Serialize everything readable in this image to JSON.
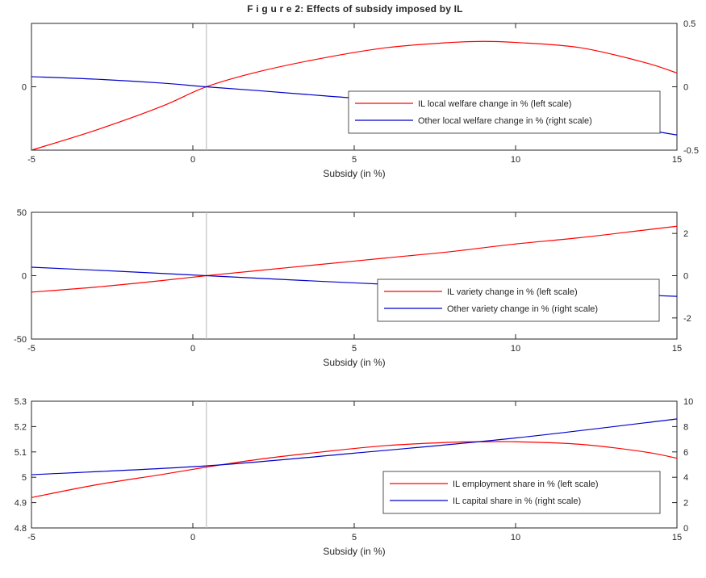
{
  "title": "F i g u r e 2: Effects of subsidy imposed by IL",
  "colors": {
    "left_series": "#ff0000",
    "right_series": "#0000cc",
    "vline": "#c0c0c0",
    "axis": "#262626"
  },
  "chart_data": [
    {
      "type": "line",
      "xlabel": "Subsidy (in %)",
      "xlim": [
        -5,
        15
      ],
      "xticks": [
        -5,
        0,
        5,
        10,
        15
      ],
      "ylim_left": [
        -0.6,
        0.6
      ],
      "yticks_left": [
        {
          "v": 0,
          "label": "0"
        }
      ],
      "ylim_right": [
        -0.5,
        0.5
      ],
      "yticks_right": [
        {
          "v": 0.5,
          "label": "0.5"
        },
        {
          "v": 0,
          "label": "0"
        },
        {
          "v": -0.5,
          "label": "-0.5"
        }
      ],
      "vline_x": 0.42,
      "legend_placement": "lower-right",
      "grid": false,
      "series": [
        {
          "name": "IL local welfare change in % (left scale)",
          "axis": "left",
          "x": [
            -5,
            -3,
            -1,
            0.42,
            2,
            4,
            6,
            8,
            9,
            10,
            12,
            14,
            15
          ],
          "y": [
            -0.6,
            -0.41,
            -0.19,
            0.0,
            0.14,
            0.27,
            0.37,
            0.42,
            0.43,
            0.42,
            0.37,
            0.23,
            0.13
          ]
        },
        {
          "name": "Other local welfare change in % (right scale)",
          "axis": "right",
          "x": [
            -5,
            -3,
            -1,
            0.42,
            2,
            4,
            6,
            8,
            10,
            12,
            14,
            15
          ],
          "y": [
            0.08,
            0.06,
            0.03,
            0.0,
            -0.03,
            -0.07,
            -0.11,
            -0.16,
            -0.21,
            -0.27,
            -0.34,
            -0.38
          ]
        }
      ]
    },
    {
      "type": "line",
      "xlabel": "Subsidy (in %)",
      "xlim": [
        -5,
        15
      ],
      "xticks": [
        -5,
        0,
        5,
        10,
        15
      ],
      "ylim_left": [
        -50,
        50
      ],
      "yticks_left": [
        {
          "v": 50,
          "label": "50"
        },
        {
          "v": 0,
          "label": "0"
        },
        {
          "v": -50,
          "label": "-50"
        }
      ],
      "ylim_right": [
        -3,
        3
      ],
      "yticks_right": [
        {
          "v": 2,
          "label": "2"
        },
        {
          "v": 0,
          "label": "0"
        },
        {
          "v": -2,
          "label": "-2"
        }
      ],
      "vline_x": 0.42,
      "legend_placement": "lower-right",
      "grid": false,
      "series": [
        {
          "name": "IL variety change in % (left scale)",
          "axis": "left",
          "x": [
            -5,
            -3,
            -1,
            0.42,
            2,
            4,
            6,
            8,
            10,
            12,
            14,
            15
          ],
          "y": [
            -13,
            -9,
            -4,
            0,
            4,
            9,
            14,
            19,
            25,
            30,
            36,
            39
          ]
        },
        {
          "name": "Other variety change in % (right scale)",
          "axis": "right",
          "x": [
            -5,
            -3,
            -1,
            0.42,
            2,
            4,
            6,
            8,
            10,
            12,
            14,
            15
          ],
          "y": [
            0.4,
            0.26,
            0.11,
            0.0,
            -0.12,
            -0.27,
            -0.41,
            -0.55,
            -0.68,
            -0.8,
            -0.92,
            -0.98
          ]
        }
      ]
    },
    {
      "type": "line",
      "xlabel": "Subsidy (in %)",
      "xlim": [
        -5,
        15
      ],
      "xticks": [
        -5,
        0,
        5,
        10,
        15
      ],
      "ylim_left": [
        4.8,
        5.3
      ],
      "yticks_left": [
        {
          "v": 5.3,
          "label": "5.3"
        },
        {
          "v": 5.2,
          "label": "5.2"
        },
        {
          "v": 5.1,
          "label": "5.1"
        },
        {
          "v": 5.0,
          "label": "5"
        },
        {
          "v": 4.9,
          "label": "4.9"
        },
        {
          "v": 4.8,
          "label": "4.8"
        }
      ],
      "ylim_right": [
        0,
        10
      ],
      "yticks_right": [
        {
          "v": 10,
          "label": "10"
        },
        {
          "v": 8,
          "label": "8"
        },
        {
          "v": 6,
          "label": "6"
        },
        {
          "v": 4,
          "label": "4"
        },
        {
          "v": 2,
          "label": "2"
        },
        {
          "v": 0,
          "label": "0"
        }
      ],
      "vline_x": 0.42,
      "legend_placement": "lower-right",
      "grid": false,
      "series": [
        {
          "name": "IL employment share in % (left scale)",
          "axis": "left",
          "x": [
            -5,
            -3,
            -1,
            0.42,
            2,
            4,
            6,
            8,
            9,
            10,
            12,
            14,
            15
          ],
          "y": [
            4.92,
            4.97,
            5.01,
            5.04,
            5.07,
            5.1,
            5.125,
            5.138,
            5.14,
            5.14,
            5.13,
            5.1,
            5.075
          ]
        },
        {
          "name": "IL capital share in % (right scale)",
          "axis": "right",
          "x": [
            -5,
            0.42,
            5,
            10,
            15
          ],
          "y": [
            4.2,
            4.9,
            5.9,
            7.1,
            8.6
          ]
        }
      ]
    }
  ]
}
